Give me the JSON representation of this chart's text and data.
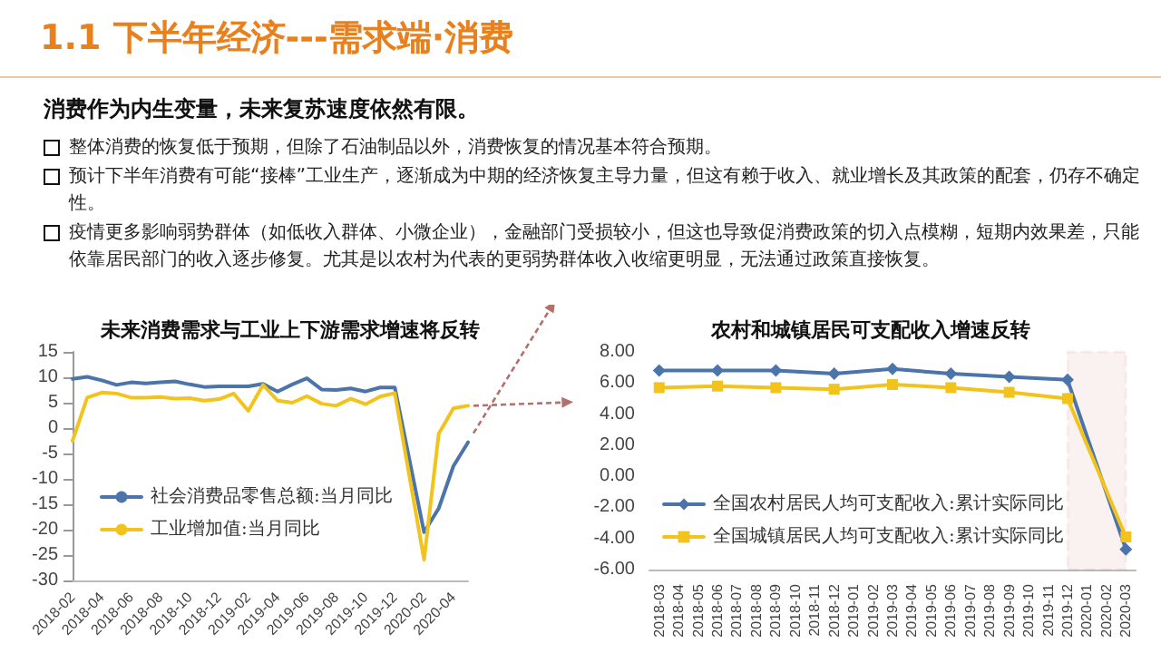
{
  "chart_data": [
    {
      "type": "other",
      "title": "1.1 下半年经济---需求端·消费",
      "subtitle": "消费作为内生变量，未来复苏速度依然有限。",
      "annotations": [
        "整体消费的恢复低于预期，但除了石油制品以外，消费恢复的情况基本符合预期。",
        "预计下半年消费有可能“接棒”工业生产，逐渐成为中期的经济恢复主导力量，但这有赖于收入、就业增长及其政策的配套，仍存不确定性。",
        "疫情更多影响弱势群体（如低收入群体、小微企业），金融部门受损较小，但这也导致促消费政策的切入点模糊，短期内效果差，只能依靠居民部门的收入逐步修复。尤其是以农村为代表的更弱势群体收入收缩更明显，无法通过政策直接恢复。"
      ]
    },
    {
      "type": "line",
      "title": "未来消费需求与工业上下游需求增速将反转",
      "categories": [
        "2018-02",
        null,
        "2018-04",
        null,
        "2018-06",
        null,
        "2018-08",
        null,
        "2018-10",
        null,
        "2018-12",
        null,
        "2019-02",
        null,
        "2019-04",
        null,
        "2019-06",
        null,
        "2019-08",
        null,
        "2019-10",
        null,
        "2019-12",
        null,
        "2020-02",
        null,
        "2020-04",
        null
      ],
      "series": [
        {
          "name": "社会消费品零售总额:当月同比",
          "color": "#4a74aa",
          "values": [
            9.7,
            10.1,
            9.4,
            8.5,
            9.0,
            8.8,
            9.0,
            9.2,
            8.6,
            8.1,
            8.2,
            null,
            8.2,
            8.7,
            7.2,
            8.6,
            9.8,
            7.6,
            7.5,
            7.8,
            7.2,
            8.0,
            8.0,
            null,
            -20.5,
            -15.8,
            -7.5,
            -2.8
          ]
        },
        {
          "name": "工业增加值:当月同比",
          "color": "#f2c31c",
          "values": [
            -2.5,
            6.0,
            7.0,
            6.8,
            6.0,
            6.0,
            6.1,
            5.8,
            5.9,
            5.4,
            5.7,
            6.8,
            3.4,
            8.5,
            5.4,
            5.0,
            6.3,
            4.8,
            4.4,
            5.8,
            4.7,
            6.2,
            6.9,
            null,
            -25.9,
            -1.1,
            3.9,
            4.4
          ]
        }
      ],
      "ylim": [
        -30,
        15
      ],
      "yticks": [
        -30,
        -25,
        -20,
        -15,
        -10,
        -5,
        0,
        5,
        10,
        15
      ],
      "grid": false,
      "legend": "bottom",
      "marker": "none",
      "line_style": "solid"
    },
    {
      "type": "line",
      "title": "农村和城镇居民可支配收入增速反转",
      "categories": [
        "2018-03",
        "2018-04",
        "2018-05",
        "2018-06",
        "2018-07",
        "2018-08",
        "2018-09",
        "2018-10",
        "2018-11",
        "2018-12",
        "2019-01",
        "2019-02",
        "2019-03",
        "2019-04",
        "2019-05",
        "2019-06",
        "2019-07",
        "2019-08",
        "2019-09",
        "2019-10",
        "2019-11",
        "2019-12",
        "2020-01",
        "2020-02",
        "2020-03"
      ],
      "series": [
        {
          "name": "全国农村居民人均可支配收入:累计实际同比",
          "color": "#4a74aa",
          "marker": "diamond",
          "values": [
            6.8,
            null,
            null,
            6.8,
            null,
            null,
            6.8,
            null,
            null,
            6.6,
            null,
            null,
            6.9,
            null,
            null,
            6.6,
            null,
            null,
            6.4,
            null,
            null,
            6.2,
            null,
            null,
            -4.7
          ]
        },
        {
          "name": "全国城镇居民人均可支配收入:累计实际同比",
          "color": "#f2c31c",
          "marker": "square",
          "values": [
            5.7,
            null,
            null,
            5.8,
            null,
            null,
            5.7,
            null,
            null,
            5.6,
            null,
            null,
            5.9,
            null,
            null,
            5.7,
            null,
            null,
            5.4,
            null,
            null,
            5.0,
            null,
            null,
            -3.9
          ]
        }
      ],
      "ylim": [
        -6,
        8
      ],
      "yticks": [
        {
          "value": -6,
          "label": "-6.00"
        },
        {
          "value": -4,
          "label": "-4.00"
        },
        {
          "value": -2,
          "label": "-2.00"
        },
        {
          "value": 0,
          "label": "0.00"
        },
        {
          "value": 2,
          "label": "2.00"
        },
        {
          "value": 4,
          "label": "4.00"
        },
        {
          "value": 6,
          "label": "6.00"
        },
        {
          "value": 8,
          "label": "8.00"
        }
      ],
      "bands": [
        {
          "axis": "x",
          "from": "2019-12",
          "to": "2020-03",
          "color": "#c0504d"
        }
      ],
      "grid": false,
      "legend": "bottom",
      "line_style": "solid"
    }
  ]
}
